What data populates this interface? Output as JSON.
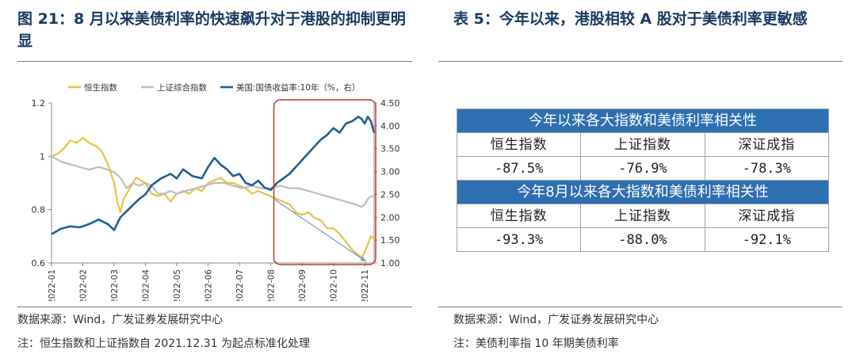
{
  "left_panel": {
    "title": "图 21：8 月以来美债利率的快速飙升对于港股的抑制更明显",
    "source": "数据来源：Wind，广发证券发展研究中心",
    "note": "注：恒生指数和上证指数自 2021.12.31 为起点标准化处理"
  },
  "right_panel": {
    "title": "表 5：今年以来，港股相较 A 股对于美债利率更敏感",
    "source": "数据来源：Wind，广发证券发展研究中心",
    "note": "注：美债利率指 10 年期美债利率",
    "table": {
      "section1_header": "今年以来各大指数和美债利率相关性",
      "section2_header": "今年8月以来各大指数和美债利率相关性",
      "columns": [
        "恒生指数",
        "上证指数",
        "深证成指"
      ],
      "section1_values": [
        "-87.5%",
        "-76.9%",
        "-78.3%"
      ],
      "section2_values": [
        "-93.3%",
        "-88.0%",
        "-92.1%"
      ]
    }
  },
  "chart_data": {
    "type": "line",
    "colors": {
      "hsi": "#e8c340",
      "sse": "#bdbdbd",
      "ust": "#1f5f95",
      "highlight_box": "#c0392b",
      "trend_arrow": "#7aa0c8"
    },
    "legend": [
      "恒生指数",
      "上证综合指数",
      "美国:国债收益率:10年（%，右）"
    ],
    "legend_placement": "top",
    "x_labels": [
      "2022-01",
      "2022-02",
      "2022-03",
      "2022-04",
      "2022-05",
      "2022-06",
      "2022-07",
      "2022-08",
      "2022-09",
      "2022-10",
      "2022-11"
    ],
    "x_range": [
      0,
      10.3
    ],
    "y_left": {
      "ticks": [
        "0.6",
        "0.8",
        "1",
        "1.2"
      ],
      "range": [
        0.6,
        1.2
      ]
    },
    "y_right": {
      "ticks": [
        "1.00",
        "1.50",
        "2.00",
        "2.50",
        "3.00",
        "3.50",
        "4.00",
        "4.50"
      ],
      "range": [
        1.0,
        4.5
      ]
    },
    "highlight_box_x_range": [
      7.1,
      10.3
    ],
    "trend_arrow": {
      "from": [
        7.1,
        0.84
      ],
      "to": [
        10.05,
        0.605
      ]
    },
    "series": [
      {
        "key": "hsi",
        "name": "恒生指数",
        "axis": "left",
        "points": [
          [
            0,
            1.0
          ],
          [
            0.2,
            1.01
          ],
          [
            0.4,
            1.03
          ],
          [
            0.6,
            1.06
          ],
          [
            0.8,
            1.05
          ],
          [
            1.0,
            1.07
          ],
          [
            1.2,
            1.05
          ],
          [
            1.4,
            1.04
          ],
          [
            1.6,
            1.02
          ],
          [
            1.8,
            0.97
          ],
          [
            2.0,
            0.9
          ],
          [
            2.1,
            0.83
          ],
          [
            2.2,
            0.79
          ],
          [
            2.3,
            0.84
          ],
          [
            2.5,
            0.88
          ],
          [
            2.7,
            0.92
          ],
          [
            3.0,
            0.9
          ],
          [
            3.2,
            0.86
          ],
          [
            3.4,
            0.85
          ],
          [
            3.6,
            0.86
          ],
          [
            3.8,
            0.83
          ],
          [
            4.0,
            0.86
          ],
          [
            4.2,
            0.87
          ],
          [
            4.4,
            0.86
          ],
          [
            4.6,
            0.88
          ],
          [
            4.8,
            0.87
          ],
          [
            5.0,
            0.9
          ],
          [
            5.2,
            0.91
          ],
          [
            5.4,
            0.92
          ],
          [
            5.6,
            0.9
          ],
          [
            5.8,
            0.9
          ],
          [
            6.0,
            0.89
          ],
          [
            6.2,
            0.88
          ],
          [
            6.4,
            0.86
          ],
          [
            6.6,
            0.87
          ],
          [
            6.8,
            0.86
          ],
          [
            7.0,
            0.85
          ],
          [
            7.2,
            0.84
          ],
          [
            7.4,
            0.83
          ],
          [
            7.6,
            0.82
          ],
          [
            7.8,
            0.79
          ],
          [
            8.0,
            0.78
          ],
          [
            8.2,
            0.79
          ],
          [
            8.4,
            0.77
          ],
          [
            8.6,
            0.76
          ],
          [
            8.8,
            0.73
          ],
          [
            9.0,
            0.73
          ],
          [
            9.2,
            0.71
          ],
          [
            9.4,
            0.68
          ],
          [
            9.6,
            0.65
          ],
          [
            9.8,
            0.63
          ],
          [
            9.9,
            0.62
          ],
          [
            10.0,
            0.64
          ],
          [
            10.1,
            0.67
          ],
          [
            10.2,
            0.7
          ],
          [
            10.3,
            0.69
          ]
        ]
      },
      {
        "key": "sse",
        "name": "上证综合指数",
        "axis": "left",
        "points": [
          [
            0,
            1.0
          ],
          [
            0.3,
            0.98
          ],
          [
            0.6,
            0.97
          ],
          [
            0.9,
            0.96
          ],
          [
            1.2,
            0.95
          ],
          [
            1.5,
            0.96
          ],
          [
            1.8,
            0.95
          ],
          [
            2.0,
            0.94
          ],
          [
            2.2,
            0.92
          ],
          [
            2.4,
            0.88
          ],
          [
            2.6,
            0.9
          ],
          [
            2.8,
            0.89
          ],
          [
            3.0,
            0.9
          ],
          [
            3.2,
            0.89
          ],
          [
            3.4,
            0.86
          ],
          [
            3.6,
            0.86
          ],
          [
            3.8,
            0.87
          ],
          [
            4.0,
            0.86
          ],
          [
            4.3,
            0.87
          ],
          [
            4.6,
            0.88
          ],
          [
            4.9,
            0.89
          ],
          [
            5.2,
            0.9
          ],
          [
            5.5,
            0.9
          ],
          [
            5.8,
            0.89
          ],
          [
            6.1,
            0.88
          ],
          [
            6.4,
            0.89
          ],
          [
            6.7,
            0.88
          ],
          [
            7.0,
            0.88
          ],
          [
            7.3,
            0.89
          ],
          [
            7.6,
            0.88
          ],
          [
            7.9,
            0.88
          ],
          [
            8.2,
            0.87
          ],
          [
            8.5,
            0.86
          ],
          [
            8.8,
            0.85
          ],
          [
            9.1,
            0.84
          ],
          [
            9.4,
            0.83
          ],
          [
            9.7,
            0.82
          ],
          [
            9.9,
            0.81
          ],
          [
            10.0,
            0.82
          ],
          [
            10.1,
            0.84
          ],
          [
            10.2,
            0.85
          ],
          [
            10.3,
            0.85
          ]
        ]
      },
      {
        "key": "ust",
        "name": "美国:国债收益率:10年（%，右）",
        "axis": "right",
        "points": [
          [
            0,
            1.63
          ],
          [
            0.3,
            1.75
          ],
          [
            0.6,
            1.8
          ],
          [
            0.9,
            1.78
          ],
          [
            1.2,
            1.85
          ],
          [
            1.5,
            1.95
          ],
          [
            1.8,
            1.85
          ],
          [
            2.0,
            1.72
          ],
          [
            2.2,
            2.0
          ],
          [
            2.5,
            2.2
          ],
          [
            2.8,
            2.4
          ],
          [
            3.0,
            2.5
          ],
          [
            3.2,
            2.7
          ],
          [
            3.5,
            2.85
          ],
          [
            3.8,
            2.95
          ],
          [
            4.0,
            2.85
          ],
          [
            4.2,
            3.05
          ],
          [
            4.5,
            2.9
          ],
          [
            4.8,
            2.85
          ],
          [
            5.0,
            3.1
          ],
          [
            5.2,
            3.3
          ],
          [
            5.4,
            3.15
          ],
          [
            5.6,
            3.05
          ],
          [
            5.8,
            2.9
          ],
          [
            6.0,
            2.95
          ],
          [
            6.2,
            2.75
          ],
          [
            6.4,
            2.7
          ],
          [
            6.6,
            2.8
          ],
          [
            6.8,
            2.65
          ],
          [
            7.0,
            2.6
          ],
          [
            7.2,
            2.75
          ],
          [
            7.4,
            2.85
          ],
          [
            7.6,
            2.95
          ],
          [
            7.8,
            3.1
          ],
          [
            8.0,
            3.25
          ],
          [
            8.2,
            3.4
          ],
          [
            8.4,
            3.55
          ],
          [
            8.6,
            3.7
          ],
          [
            8.8,
            3.8
          ],
          [
            9.0,
            3.95
          ],
          [
            9.2,
            3.85
          ],
          [
            9.4,
            4.05
          ],
          [
            9.6,
            4.1
          ],
          [
            9.8,
            4.2
          ],
          [
            9.9,
            4.15
          ],
          [
            10.0,
            4.05
          ],
          [
            10.1,
            4.2
          ],
          [
            10.2,
            4.1
          ],
          [
            10.3,
            3.85
          ]
        ]
      }
    ]
  }
}
